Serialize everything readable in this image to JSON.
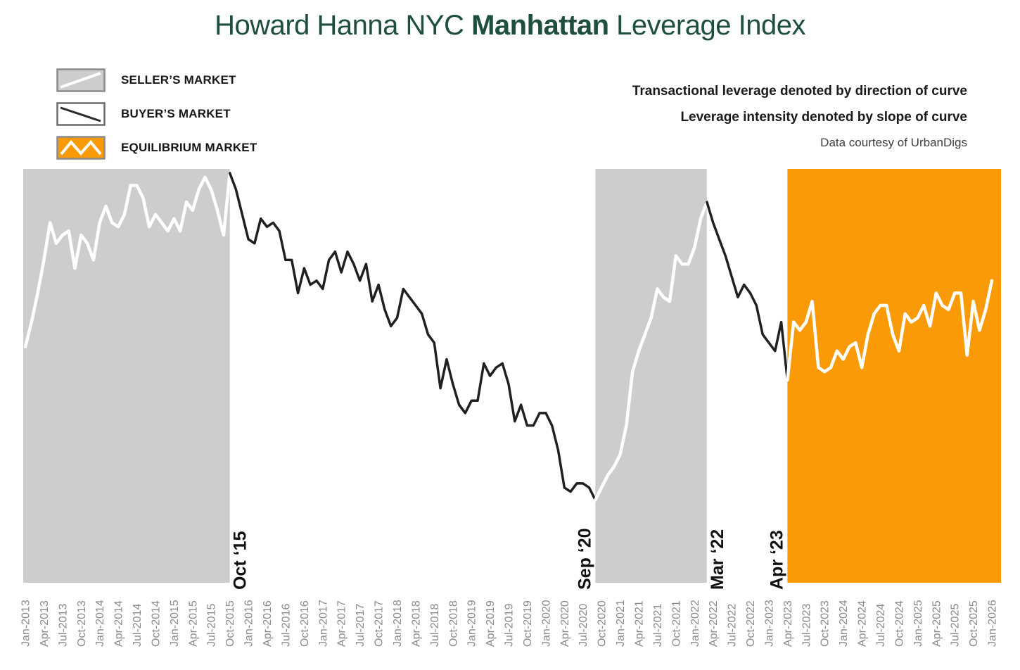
{
  "title": {
    "prefix": "Howard Hanna NYC ",
    "bold": "Manhattan",
    "suffix": " Leverage Index"
  },
  "legend": [
    {
      "key": "seller",
      "label": "SELLER’S MARKET"
    },
    {
      "key": "buyer",
      "label": "BUYER’S MARKET"
    },
    {
      "key": "equilibrium",
      "label": "EQUILIBRIUM MARKET"
    }
  ],
  "notes": {
    "line1": "Transactional leverage denoted by direction of curve",
    "line2": "Leverage intensity denoted by slope of curve",
    "credit": "Data courtesy of UrbanDigs"
  },
  "colors": {
    "title_green": "#1E4F3E",
    "gray": "#CDCDCD",
    "orange": "#FB9A07",
    "line_dark": "#202020",
    "line_light": "#FFFFFF",
    "axis_text": "#8A8A8A",
    "annotation_text": "#111111",
    "legend_border": "#8A8A8A"
  },
  "chart_data": {
    "type": "line",
    "title": "Howard Hanna NYC Manhattan Leverage Index",
    "x_start": "Jan-2013",
    "x_end": "Jan-2026",
    "frequency": "monthly",
    "y_scale": "normalized 0-100 (no y-axis shown in chart)",
    "ylim": [
      0,
      100
    ],
    "values": [
      57,
      63,
      70,
      78,
      87,
      82,
      84,
      85,
      76,
      84,
      82,
      78,
      87,
      91,
      87,
      86,
      89,
      96,
      96,
      93,
      86,
      89,
      87,
      85,
      88,
      85,
      92,
      90,
      95,
      98,
      95,
      90,
      84,
      99,
      95,
      89,
      83,
      82,
      88,
      86,
      87,
      85,
      78,
      78,
      70,
      76,
      72,
      73,
      71,
      78,
      80,
      75,
      80,
      77,
      73,
      77,
      68,
      72,
      66,
      62,
      64,
      71,
      69,
      67,
      65,
      60,
      58,
      47,
      54,
      48,
      43,
      41,
      44,
      44,
      53,
      50,
      52,
      53,
      48,
      39,
      43,
      38,
      38,
      41,
      41,
      38,
      32,
      23,
      22,
      24,
      24,
      23,
      20,
      23,
      26,
      28,
      31,
      38,
      51,
      56,
      60,
      64,
      71,
      69,
      68,
      79,
      77,
      77,
      81,
      88,
      92,
      87,
      83,
      79,
      74,
      69,
      72,
      70,
      67,
      60,
      58,
      56,
      63,
      49,
      63,
      61,
      63,
      68,
      52,
      51,
      52,
      56,
      54,
      57,
      58,
      52,
      60,
      65,
      67,
      67,
      60,
      56,
      65,
      63,
      64,
      67,
      62,
      70,
      67,
      66,
      70,
      70,
      55,
      68,
      61,
      66,
      73
    ],
    "x_tick_labels": [
      "Jan-2013",
      "Apr-2013",
      "Jul-2013",
      "Oct-2013",
      "Jan-2014",
      "Apr-2014",
      "Jul-2014",
      "Oct-2014",
      "Jan-2015",
      "Apr-2015",
      "Jul-2015",
      "Oct-2015",
      "Jan-2016",
      "Apr-2016",
      "Jul-2016",
      "Oct-2016",
      "Jan-2017",
      "Apr-2017",
      "Jul-2017",
      "Oct-2017",
      "Jan-2018",
      "Apr-2018",
      "Jul-2018",
      "Oct-2018",
      "Jan-2019",
      "Apr-2019",
      "Jul-2019",
      "Oct-2019",
      "Jan-2020",
      "Apr-2020",
      "Jul-2020",
      "Oct-2020",
      "Jan-2021",
      "Apr-2021",
      "Jul-2021",
      "Oct-2021",
      "Jan-2022",
      "Apr-2022",
      "Jul-2022",
      "Oct-2022",
      "Jan-2023",
      "Apr-2023",
      "Jul-2023",
      "Oct-2023",
      "Jan-2024",
      "Apr-2024",
      "Jul-2024",
      "Oct-2024",
      "Jan-2025",
      "Apr-2025",
      "Jul-2025",
      "Oct-2025",
      "Jan-2026"
    ],
    "regions": [
      {
        "market": "seller",
        "from": "Jan-2013",
        "to": "Oct-2015",
        "from_index": 0,
        "to_index": 33,
        "color_key": "gray"
      },
      {
        "market": "buyer",
        "from": "Oct-2015",
        "to": "Sep-2020",
        "from_index": 33,
        "to_index": 92,
        "color_key": "white"
      },
      {
        "market": "seller",
        "from": "Sep-2020",
        "to": "Mar-2022",
        "from_index": 92,
        "to_index": 110,
        "color_key": "gray"
      },
      {
        "market": "buyer",
        "from": "Mar-2022",
        "to": "Apr-2023",
        "from_index": 110,
        "to_index": 123,
        "color_key": "white"
      },
      {
        "market": "equilibrium",
        "from": "Apr-2023",
        "to": "Jan-2026",
        "from_index": 123,
        "to_index": 156,
        "color_key": "orange"
      }
    ],
    "line_segments": [
      {
        "from_index": 0,
        "to_index": 33,
        "color": "white",
        "market": "seller"
      },
      {
        "from_index": 33,
        "to_index": 92,
        "color": "dark",
        "market": "buyer"
      },
      {
        "from_index": 92,
        "to_index": 110,
        "color": "white",
        "market": "seller"
      },
      {
        "from_index": 110,
        "to_index": 123,
        "color": "dark",
        "market": "buyer"
      },
      {
        "from_index": 123,
        "to_index": 156,
        "color": "white",
        "market": "equilibrium"
      }
    ],
    "annotations": [
      {
        "label": "Oct ‘15",
        "month_index": 33,
        "side": "right"
      },
      {
        "label": "Sep ‘20",
        "month_index": 92,
        "side": "left"
      },
      {
        "label": "Mar ‘22",
        "month_index": 110,
        "side": "right"
      },
      {
        "label": "Apr ‘23",
        "month_index": 123,
        "side": "left"
      }
    ],
    "legend_position": "top-left",
    "grid": false
  }
}
